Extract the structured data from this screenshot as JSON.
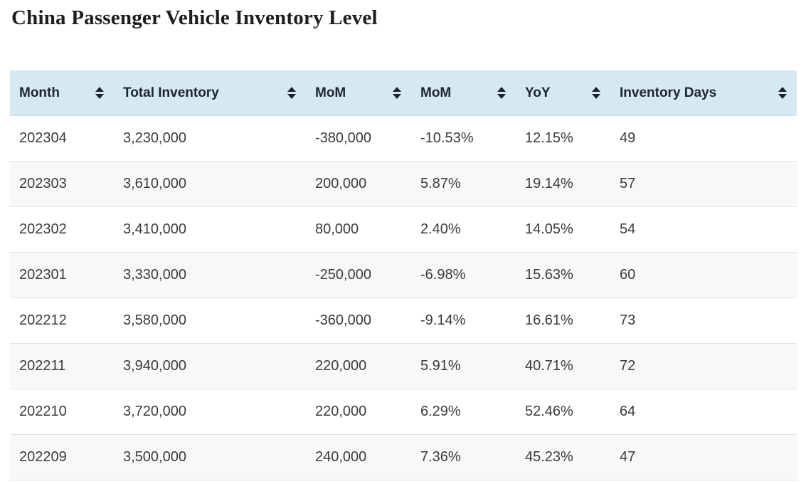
{
  "page": {
    "title": "China Passenger Vehicle Inventory Level"
  },
  "table": {
    "columns": [
      {
        "label": "Month"
      },
      {
        "label": "Total Inventory"
      },
      {
        "label": "MoM"
      },
      {
        "label": "MoM"
      },
      {
        "label": "YoY"
      },
      {
        "label": "Inventory Days"
      }
    ],
    "rows": [
      [
        "202304",
        "3,230,000",
        "-380,000",
        "-10.53%",
        "12.15%",
        "49"
      ],
      [
        "202303",
        "3,610,000",
        "200,000",
        "5.87%",
        "19.14%",
        "57"
      ],
      [
        "202302",
        "3,410,000",
        "80,000",
        "2.40%",
        "14.05%",
        "54"
      ],
      [
        "202301",
        "3,330,000",
        "-250,000",
        "-6.98%",
        "15.63%",
        "60"
      ],
      [
        "202212",
        "3,580,000",
        "-360,000",
        "-9.14%",
        "16.61%",
        "73"
      ],
      [
        "202211",
        "3,940,000",
        "220,000",
        "5.91%",
        "40.71%",
        "72"
      ],
      [
        "202210",
        "3,720,000",
        "220,000",
        "6.29%",
        "52.46%",
        "64"
      ],
      [
        "202209",
        "3,500,000",
        "240,000",
        "7.36%",
        "45.23%",
        "47"
      ]
    ]
  },
  "icons": {
    "sort": "sort-arrows-icon"
  },
  "colors": {
    "header_bg": "#d6e9f2",
    "header_text": "#1a2530",
    "row_alt_bg": "#f8f8f8",
    "row_border": "#e3e3e3",
    "cell_text": "#3b3b3b",
    "sort_icon": "#1c2430"
  }
}
